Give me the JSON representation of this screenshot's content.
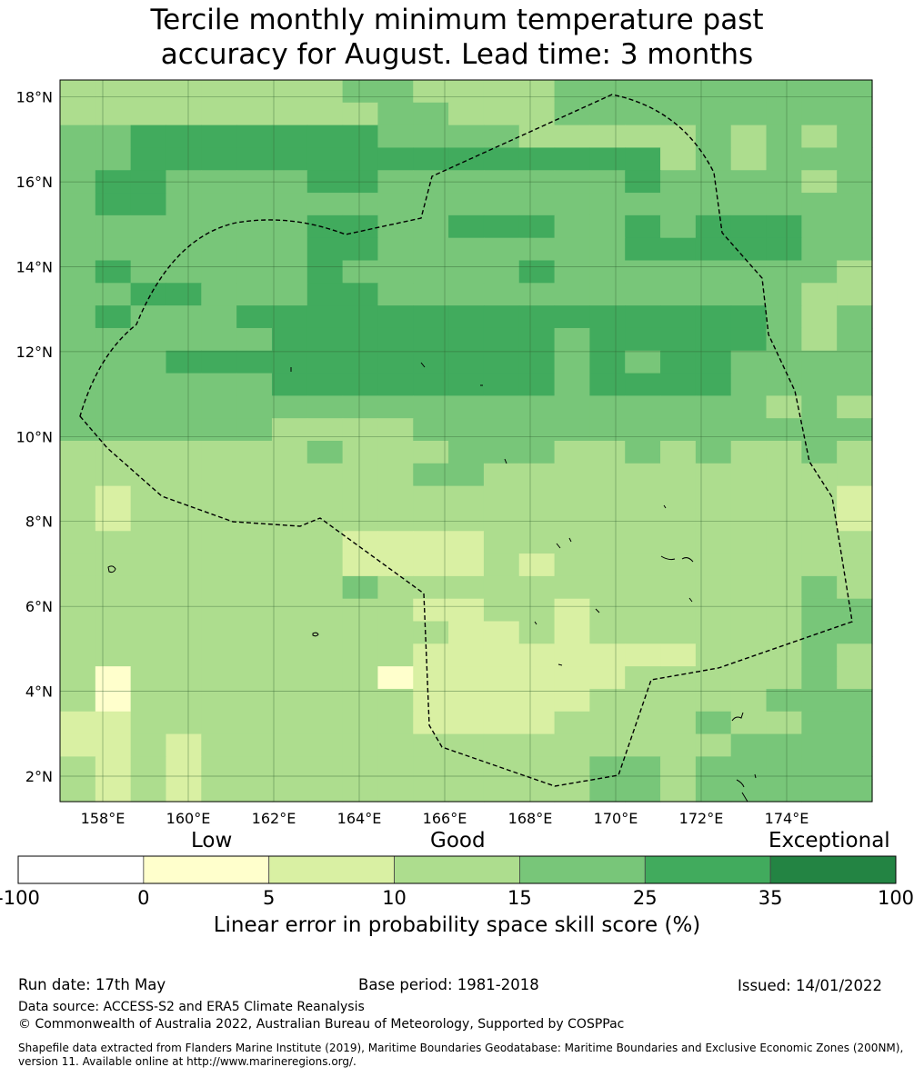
{
  "title": {
    "line1": "Tercile monthly minimum temperature past",
    "line2": "accuracy for August. Lead time: 3 months"
  },
  "map": {
    "lat_ticks": [
      "18°N",
      "16°N",
      "14°N",
      "12°N",
      "10°N",
      "8°N",
      "6°N",
      "4°N",
      "2°N"
    ],
    "lon_ticks": [
      "158°E",
      "160°E",
      "162°E",
      "164°E",
      "166°E",
      "168°E",
      "170°E",
      "172°E",
      "174°E"
    ],
    "lat_range": [
      1.4,
      18.4
    ],
    "lon_range": [
      157.0,
      176.0
    ],
    "boundary": "dashed-black"
  },
  "legend": {
    "categories": [
      "Low",
      "Good",
      "Exceptional"
    ],
    "bins": [
      {
        "from": "-100",
        "to": "0",
        "color": "#ffffff"
      },
      {
        "from": "0",
        "to": "5",
        "color": "#ffffcc"
      },
      {
        "from": "5",
        "to": "10",
        "color": "#d9f0a3"
      },
      {
        "from": "10",
        "to": "15",
        "color": "#addd8e"
      },
      {
        "from": "15",
        "to": "25",
        "color": "#78c679"
      },
      {
        "from": "25",
        "to": "35",
        "color": "#41ab5d"
      },
      {
        "from": "35",
        "to": "100",
        "color": "#238443"
      }
    ],
    "tick_labels": [
      "-100",
      "0",
      "5",
      "10",
      "15",
      "25",
      "35",
      "100"
    ],
    "axis_label": "Linear error in probability space skill score (%)"
  },
  "footer": {
    "run_date": "Run date: 17th May",
    "base_period": "Base period: 1981-2018",
    "issued": "Issued: 14/01/2022",
    "data_source": "Data source: ACCESS-S2 and ERA5 Climate Reanalysis",
    "copyright": "© Commonwealth of Australia 2022, Australian Bureau of Meteorology, Supported by COSPPac",
    "shapefile_line1": "Shapefile data extracted from Flanders Marine Institute (2019), Maritime Boundaries Geodatabase: Maritime Boundaries and Exclusive Economic Zones (200NM),",
    "shapefile_line2": "version 11. Available online at http://www.marineregions.org/."
  },
  "grid_rows": [
    "22222222332222333333333",
    "22222222233222333333333",
    "33444444433332222232323",
    "33444444444444444232333",
    "34433334433333334333323",
    "34433333333333333333333",
    "33333334433444334344433",
    "33333334433333334444433",
    "34333334333334333333332",
    "33443334433333333333322",
    "34333444444444444444323",
    "33333344444444344444323",
    "33344444444444343443333",
    "33333344444444344443333",
    "33333333333333333333232",
    "33333322223333333333333",
    "22222223222333223232232",
    "22222222223322222222222",
    "21222222222222222222221",
    "21222222222222222222221",
    "22222222111122222222222",
    "22222222111121222222222",
    "22222222322222222222232",
    "22222222221122122222233",
    "22222222222112122222233",
    "22222222221111111122232",
    "20222222201111112222232",
    "20222222221111122222333",
    "11222222221111222232233",
    "11212222222222222223333",
    "21212222222222233233333",
    "21212222222222233233333"
  ]
}
